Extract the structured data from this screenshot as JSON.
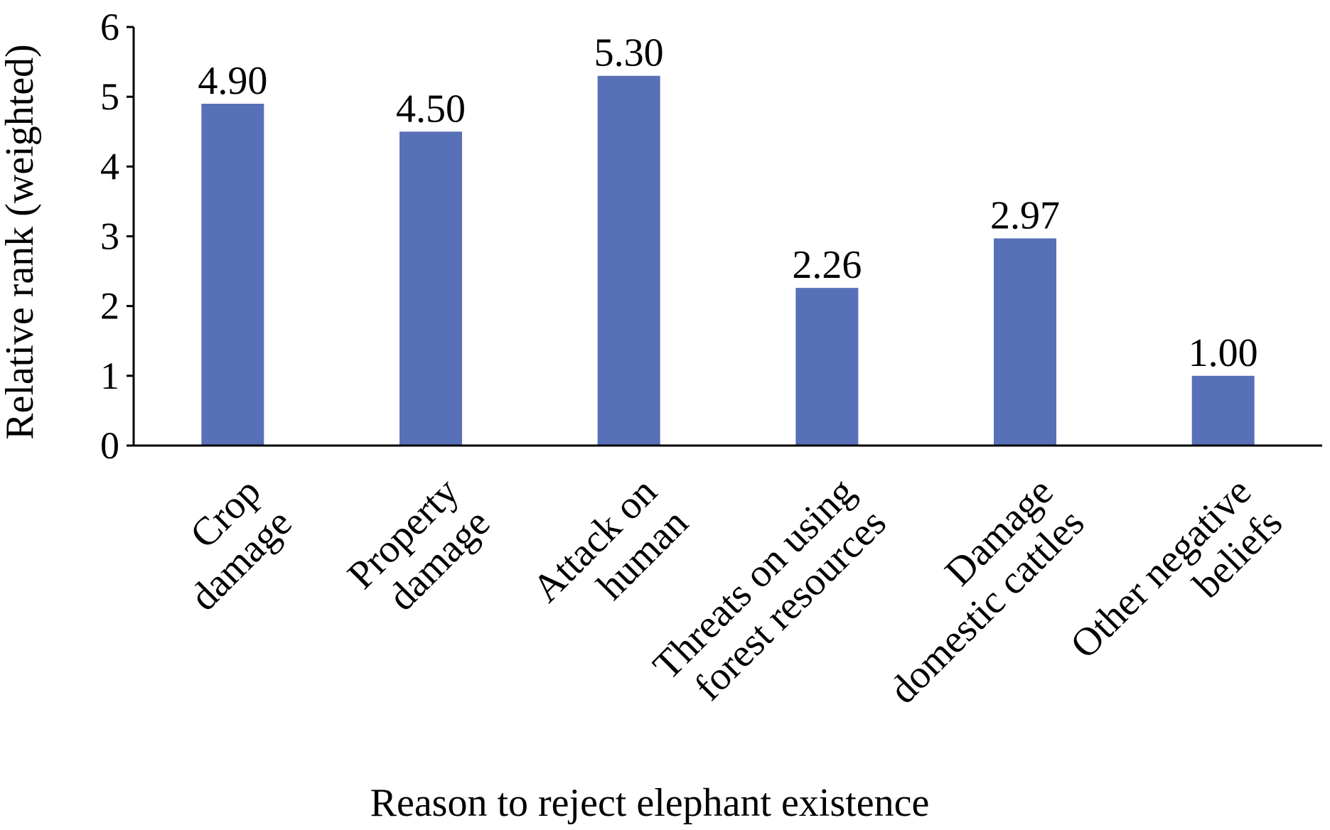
{
  "chart_data": {
    "type": "bar",
    "categories": [
      [
        "Crop",
        "damage"
      ],
      [
        "Property",
        "damage"
      ],
      [
        "Attack on",
        "human"
      ],
      [
        "Threats on using",
        "forest resources"
      ],
      [
        "Damage",
        "domestic cattles"
      ],
      [
        "Other negative",
        "beliefs"
      ]
    ],
    "values": [
      4.9,
      4.5,
      5.3,
      2.26,
      2.97,
      1.0
    ],
    "value_labels": [
      "4.90",
      "4.50",
      "5.30",
      "2.26",
      "2.97",
      "1.00"
    ],
    "title": "",
    "xlabel": "Reason to reject elephant existence",
    "ylabel": "Relative rank (weighted)",
    "ylim": [
      0,
      6
    ],
    "yticks": [
      0,
      1,
      2,
      3,
      4,
      5,
      6
    ],
    "grid": false,
    "legend": "none",
    "bar_color": "#5870b7",
    "axis_color": "#000000"
  }
}
